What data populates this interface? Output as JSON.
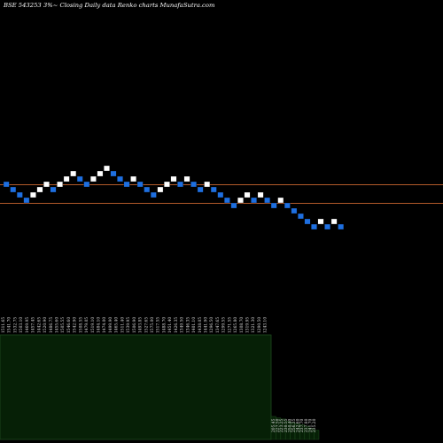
{
  "chart_data": {
    "type": "renko",
    "title": "BSE 543253 3%~ Closing Daily data Renko charts MunafaSutra.com",
    "colors": {
      "background": "#000000",
      "up_brick": "#ffffff",
      "down_brick": "#1e6fe0",
      "reference_line": "#b25a2a",
      "volume_fill": "#062006",
      "volume_border": "#1e4a1e",
      "text": "#ffffff"
    },
    "reference_levels": [
      1510,
      1440
    ],
    "bricks": [
      {
        "dir": "down",
        "level": 1500
      },
      {
        "dir": "down",
        "level": 1480
      },
      {
        "dir": "down",
        "level": 1460
      },
      {
        "dir": "down",
        "level": 1440
      },
      {
        "dir": "up",
        "level": 1460
      },
      {
        "dir": "up",
        "level": 1480
      },
      {
        "dir": "up",
        "level": 1500
      },
      {
        "dir": "down",
        "level": 1480
      },
      {
        "dir": "up",
        "level": 1500
      },
      {
        "dir": "up",
        "level": 1520
      },
      {
        "dir": "up",
        "level": 1540
      },
      {
        "dir": "down",
        "level": 1520
      },
      {
        "dir": "down",
        "level": 1500
      },
      {
        "dir": "up",
        "level": 1520
      },
      {
        "dir": "up",
        "level": 1540
      },
      {
        "dir": "up",
        "level": 1560
      },
      {
        "dir": "down",
        "level": 1540
      },
      {
        "dir": "down",
        "level": 1520
      },
      {
        "dir": "down",
        "level": 1500
      },
      {
        "dir": "up",
        "level": 1520
      },
      {
        "dir": "down",
        "level": 1500
      },
      {
        "dir": "down",
        "level": 1480
      },
      {
        "dir": "down",
        "level": 1460
      },
      {
        "dir": "up",
        "level": 1480
      },
      {
        "dir": "up",
        "level": 1500
      },
      {
        "dir": "up",
        "level": 1520
      },
      {
        "dir": "down",
        "level": 1500
      },
      {
        "dir": "up",
        "level": 1520
      },
      {
        "dir": "down",
        "level": 1500
      },
      {
        "dir": "down",
        "level": 1480
      },
      {
        "dir": "up",
        "level": 1500
      },
      {
        "dir": "down",
        "level": 1480
      },
      {
        "dir": "down",
        "level": 1460
      },
      {
        "dir": "down",
        "level": 1440
      },
      {
        "dir": "down",
        "level": 1420
      },
      {
        "dir": "up",
        "level": 1440
      },
      {
        "dir": "up",
        "level": 1460
      },
      {
        "dir": "down",
        "level": 1440
      },
      {
        "dir": "up",
        "level": 1460
      },
      {
        "dir": "down",
        "level": 1440
      },
      {
        "dir": "down",
        "level": 1420
      },
      {
        "dir": "up",
        "level": 1440
      },
      {
        "dir": "down",
        "level": 1420
      },
      {
        "dir": "down",
        "level": 1400
      },
      {
        "dir": "down",
        "level": 1380
      },
      {
        "dir": "down",
        "level": 1360
      },
      {
        "dir": "down",
        "level": 1340
      },
      {
        "dir": "up",
        "level": 1360
      },
      {
        "dir": "down",
        "level": 1340
      },
      {
        "dir": "up",
        "level": 1360
      },
      {
        "dir": "down",
        "level": 1340
      }
    ],
    "x_labels": [
      "1511.65",
      "1541.70",
      "1532.75",
      "1503.10",
      "1469.95",
      "1457.45",
      "1442.65",
      "1520.90",
      "1486.75",
      "1455.60",
      "1505.55",
      "1546.60",
      "1542.90",
      "1508.55",
      "1479.05",
      "1519.10",
      "1484.10",
      "1474.00",
      "1499.90",
      "1465.40",
      "1511.40",
      "1539.95",
      "1506.90",
      "1493.85",
      "1527.65",
      "1575.00",
      "1517.55",
      "1488.70",
      "1451.40",
      "1426.35",
      "1349.50",
      "1346.35",
      "1401.10",
      "1438.05",
      "1441.90",
      "1296.50",
      "1347.65",
      "1299.55",
      "1271.55",
      "1265.80",
      "1308.70",
      "1319.95",
      "1321.30",
      "1290.50",
      "1243.10"
    ],
    "tail_x_labels": [
      "205.45",
      "227.50",
      "223.25",
      "230.55",
      "250.40",
      "256.35",
      "242.60",
      "237.70",
      "237.80",
      "241.70",
      "235.20"
    ],
    "volume": {
      "main_level": 1,
      "tail_levels": [
        0.45,
        0.42,
        0.4,
        0.36,
        0.33,
        0.31,
        0.29,
        0.26,
        0.22,
        0.18
      ]
    }
  }
}
